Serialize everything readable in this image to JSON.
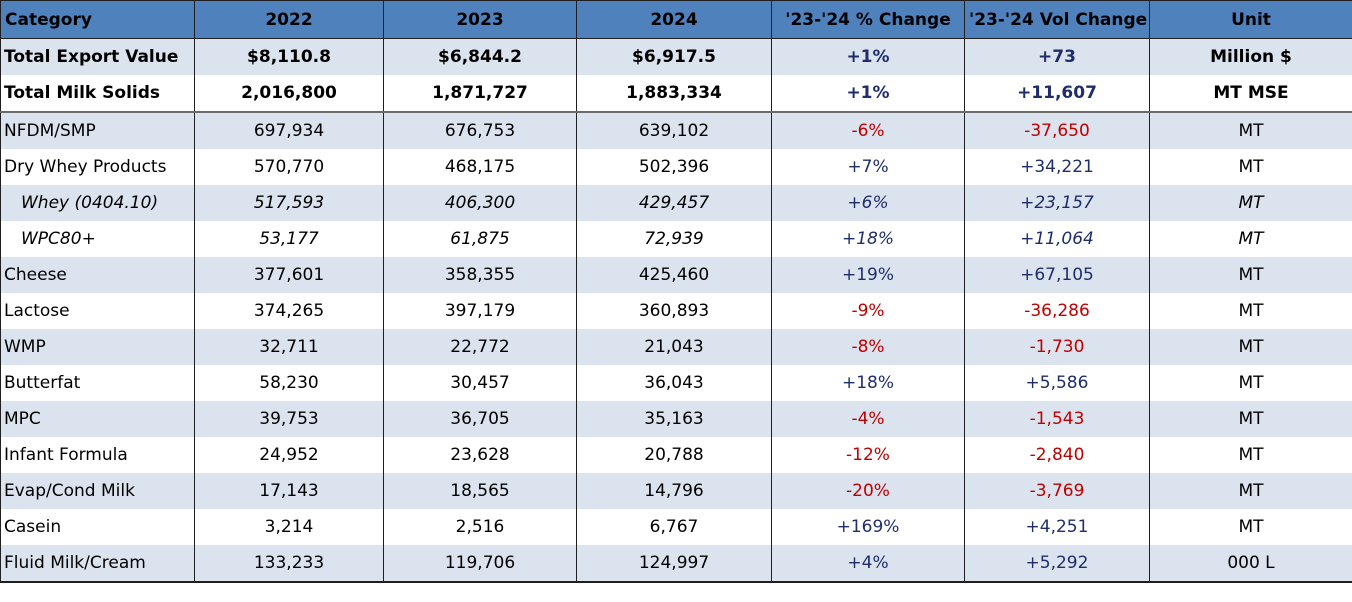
{
  "chart_data": {
    "type": "table",
    "columns": [
      "Category",
      "2022",
      "2023",
      "2024",
      "'23-'24 % Change",
      "'23-'24 Vol Change",
      "Unit"
    ],
    "rows": [
      {
        "category": "Total Export Value",
        "y2022": "$8,110.8",
        "y2023": "$6,844.2",
        "y2024": "$6,917.5",
        "pct": "+1%",
        "vol": "+73",
        "unit": "Million $",
        "style": "bold",
        "shade": "shade"
      },
      {
        "category": "Total Milk Solids",
        "y2022": "2,016,800",
        "y2023": "1,871,727",
        "y2024": "1,883,334",
        "pct": "+1%",
        "vol": "+11,607",
        "unit": "MT MSE",
        "style": "bold",
        "shade": "white"
      },
      {
        "category": "NFDM/SMP",
        "y2022": "697,934",
        "y2023": "676,753",
        "y2024": "639,102",
        "pct": "-6%",
        "vol": "-37,650",
        "unit": "MT",
        "style": "normal",
        "shade": "shade"
      },
      {
        "category": "Dry Whey Products",
        "y2022": "570,770",
        "y2023": "468,175",
        "y2024": "502,396",
        "pct": "+7%",
        "vol": "+34,221",
        "unit": "MT",
        "style": "normal",
        "shade": "white"
      },
      {
        "category": "Whey (0404.10)",
        "y2022": "517,593",
        "y2023": "406,300",
        "y2024": "429,457",
        "pct": "+6%",
        "vol": "+23,157",
        "unit": "MT",
        "style": "italic",
        "shade": "shade"
      },
      {
        "category": "WPC80+",
        "y2022": "53,177",
        "y2023": "61,875",
        "y2024": "72,939",
        "pct": "+18%",
        "vol": "+11,064",
        "unit": "MT",
        "style": "italic",
        "shade": "white"
      },
      {
        "category": "Cheese",
        "y2022": "377,601",
        "y2023": "358,355",
        "y2024": "425,460",
        "pct": "+19%",
        "vol": "+67,105",
        "unit": "MT",
        "style": "normal",
        "shade": "shade"
      },
      {
        "category": "Lactose",
        "y2022": "374,265",
        "y2023": "397,179",
        "y2024": "360,893",
        "pct": "-9%",
        "vol": "-36,286",
        "unit": "MT",
        "style": "normal",
        "shade": "white"
      },
      {
        "category": "WMP",
        "y2022": "32,711",
        "y2023": "22,772",
        "y2024": "21,043",
        "pct": "-8%",
        "vol": "-1,730",
        "unit": "MT",
        "style": "normal",
        "shade": "shade"
      },
      {
        "category": "Butterfat",
        "y2022": "58,230",
        "y2023": "30,457",
        "y2024": "36,043",
        "pct": "+18%",
        "vol": "+5,586",
        "unit": "MT",
        "style": "normal",
        "shade": "white"
      },
      {
        "category": "MPC",
        "y2022": "39,753",
        "y2023": "36,705",
        "y2024": "35,163",
        "pct": "-4%",
        "vol": "-1,543",
        "unit": "MT",
        "style": "normal",
        "shade": "shade"
      },
      {
        "category": "Infant Formula",
        "y2022": "24,952",
        "y2023": "23,628",
        "y2024": "20,788",
        "pct": "-12%",
        "vol": "-2,840",
        "unit": "MT",
        "style": "normal",
        "shade": "white"
      },
      {
        "category": "Evap/Cond Milk",
        "y2022": "17,143",
        "y2023": "18,565",
        "y2024": "14,796",
        "pct": "-20%",
        "vol": "-3,769",
        "unit": "MT",
        "style": "normal",
        "shade": "shade"
      },
      {
        "category": "Casein",
        "y2022": "3,214",
        "y2023": "2,516",
        "y2024": "6,767",
        "pct": "+169%",
        "vol": "+4,251",
        "unit": "MT",
        "style": "normal",
        "shade": "white"
      },
      {
        "category": "Fluid Milk/Cream",
        "y2022": "133,233",
        "y2023": "119,706",
        "y2024": "124,997",
        "pct": "+4%",
        "vol": "+5,292",
        "unit": "000 L",
        "style": "normal",
        "shade": "shade"
      }
    ]
  },
  "colors": {
    "header_bg": "#4f81bd",
    "row_shade": "#dbe3ee",
    "positive_text": "#1f2d6b",
    "negative_text": "#c00000"
  }
}
